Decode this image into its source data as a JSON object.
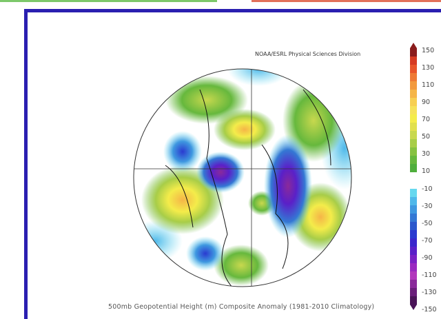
{
  "header_bars": {
    "left_color": "#7cc86a",
    "right_color": "#e2705a"
  },
  "frame_color": "#2a1fb0",
  "map": {
    "credit": "NOAA/ESRL Physical Sciences Division",
    "caption": "500mb Geopotential Height (m) Composite Anomaly (1981-2010 Climatology)",
    "projection": "north-polar-stereographic"
  },
  "colorbar": {
    "labels": [
      "150",
      "130",
      "110",
      "90",
      "70",
      "50",
      "30",
      "10",
      "-10",
      "-30",
      "-50",
      "-70",
      "-90",
      "-110",
      "-130",
      "-150"
    ],
    "colors": [
      "#8a1c1c",
      "#d63a22",
      "#e8552a",
      "#ee7a35",
      "#f29a3e",
      "#f5b548",
      "#f7cf52",
      "#f6e25a",
      "#f4ec4a",
      "#e1e04e",
      "#c8d84e",
      "#a8cd48",
      "#86c241",
      "#66b83d",
      "#4fae3c",
      "#ffffff",
      "#ffffff",
      "#66d8ef",
      "#4fb8ea",
      "#3f98e0",
      "#3478d4",
      "#2b58cc",
      "#2a3ad0",
      "#3a26cc",
      "#5a20c8",
      "#7a22c4",
      "#9a2ac0",
      "#b238bc",
      "#8a2a9a",
      "#6a1e7a",
      "#4a1458"
    ]
  }
}
